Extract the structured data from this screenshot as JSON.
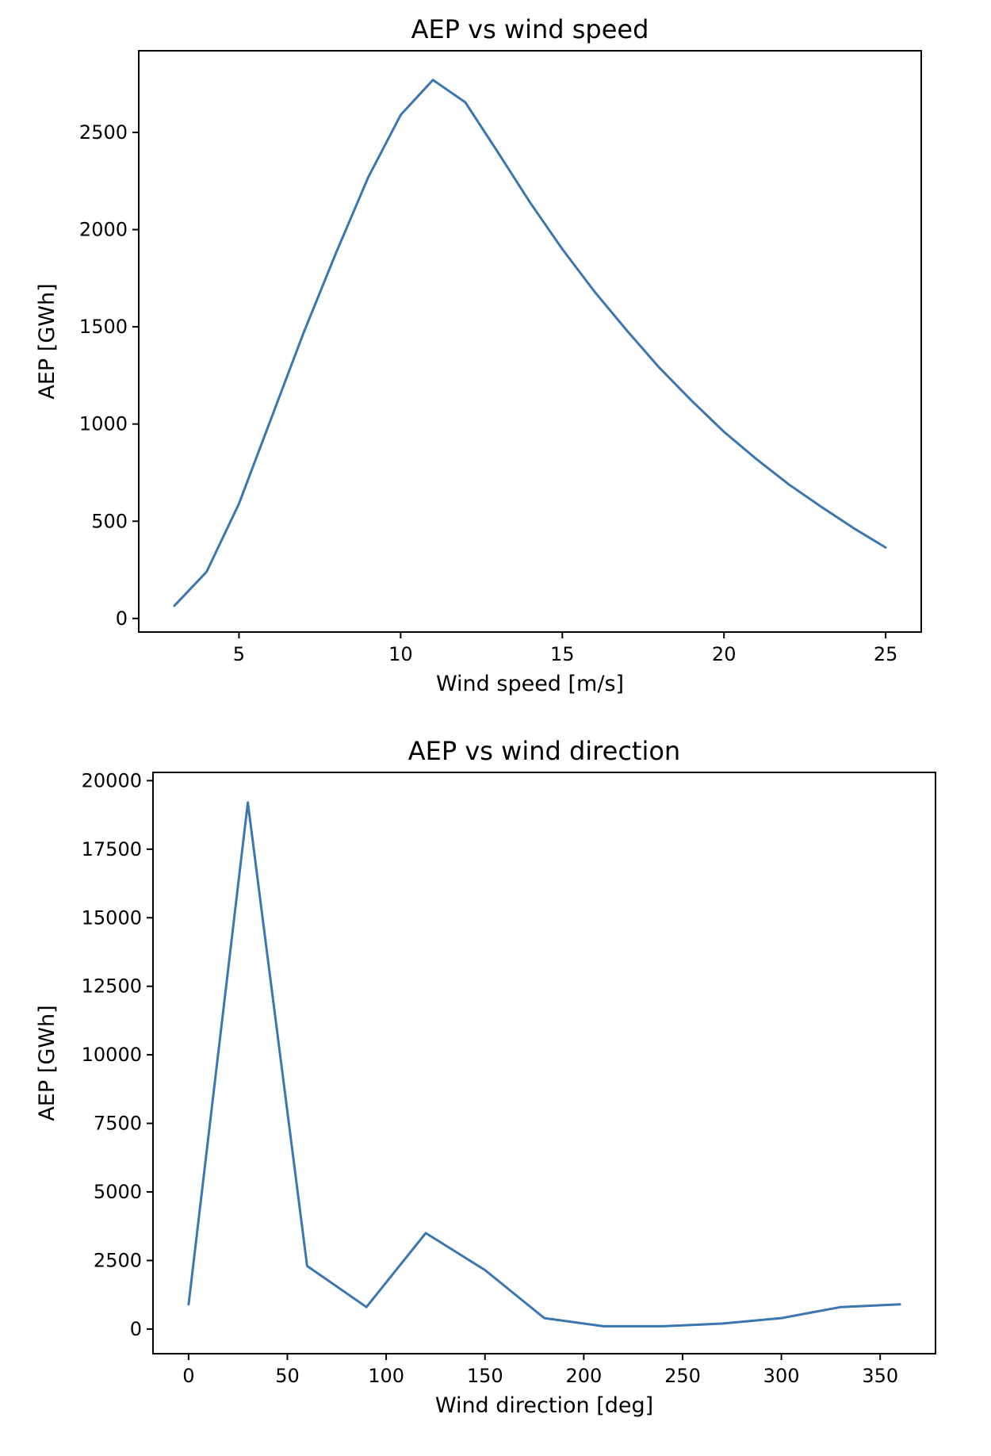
{
  "colors": {
    "series": "#3b76af"
  },
  "chart_data": [
    {
      "type": "line",
      "title": "AEP vs wind speed",
      "xlabel": "Wind speed [m/s]",
      "ylabel": "AEP [GWh]",
      "xlim": [
        1.9,
        26.1
      ],
      "ylim": [
        -70,
        2920
      ],
      "xticks": [
        5,
        10,
        15,
        20,
        25
      ],
      "yticks": [
        0,
        500,
        1000,
        1500,
        2000,
        2500
      ],
      "grid": false,
      "series": [
        {
          "x": [
            3,
            4,
            5,
            6,
            7,
            8,
            9,
            10,
            11,
            12,
            13,
            14,
            15,
            16,
            17,
            18,
            19,
            20,
            21,
            22,
            23,
            24,
            25
          ],
          "y": [
            65,
            240,
            590,
            1030,
            1470,
            1880,
            2270,
            2590,
            2770,
            2655,
            2400,
            2140,
            1900,
            1680,
            1480,
            1290,
            1120,
            960,
            820,
            690,
            575,
            465,
            365
          ]
        }
      ]
    },
    {
      "type": "line",
      "title": "AEP vs wind direction",
      "xlabel": "Wind direction [deg]",
      "ylabel": "AEP [GWh]",
      "xlim": [
        -18,
        378
      ],
      "ylim": [
        -900,
        20300
      ],
      "xticks": [
        0,
        50,
        100,
        150,
        200,
        250,
        300,
        350
      ],
      "yticks": [
        0,
        2500,
        5000,
        7500,
        10000,
        12500,
        15000,
        17500,
        20000
      ],
      "grid": false,
      "series": [
        {
          "x": [
            0,
            30,
            60,
            90,
            120,
            150,
            180,
            210,
            240,
            270,
            300,
            330,
            360
          ],
          "y": [
            900,
            19200,
            2300,
            800,
            3500,
            2150,
            400,
            100,
            100,
            200,
            400,
            800,
            900
          ]
        }
      ]
    }
  ]
}
